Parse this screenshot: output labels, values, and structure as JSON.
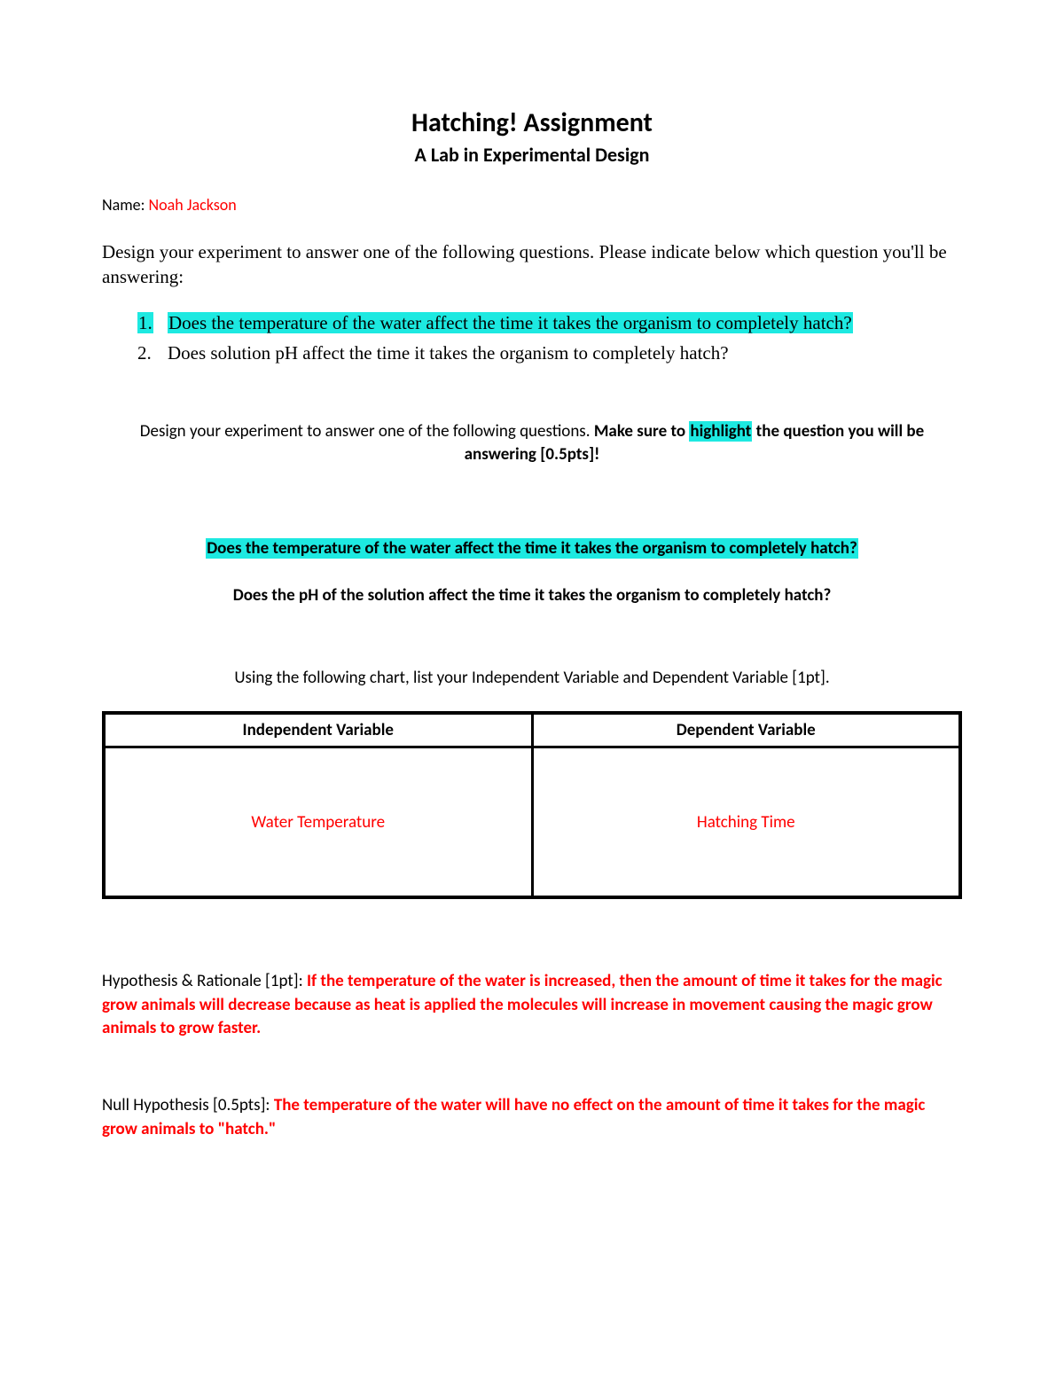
{
  "title": "Hatching! Assignment",
  "subtitle": "A Lab in Experimental Design",
  "name_label": "Name:",
  "name_value": "Noah Jackson",
  "intro": "Design your experiment to answer one of the following questions. Please indicate below which question you'll be answering:",
  "questions": {
    "q1_num": "1.",
    "q1_text": "Does the temperature of the water affect the time it takes the organism to completely hatch?",
    "q2_num": "2.",
    "q2_text": "Does solution pH affect the time it takes the organism to completely hatch?"
  },
  "instruction_part1": "Design your experiment to answer one of the following questions.  ",
  "instruction_part2": "Make sure to ",
  "instruction_highlight": "highlight",
  "instruction_part3": " the question you will be answering [0.5pts]!",
  "selected_question": "Does the temperature of the water affect the time it takes the organism to completely hatch?",
  "plain_question": "Does the pH of the solution affect the time it takes the organism to completely hatch?",
  "chart_instruction": "Using the following chart, list your Independent Variable and Dependent Variable [1pt].",
  "table": {
    "header_iv": "Independent Variable",
    "header_dv": "Dependent Variable",
    "value_iv": "Water Temperature",
    "value_dv": "Hatching Time"
  },
  "hypothesis_label": "Hypothesis & Rationale [1pt]:  ",
  "hypothesis_text": "If the temperature of the water is increased, then the amount of time it takes for the magic grow animals will decrease because as heat is applied the molecules will increase in movement causing the magic grow animals to grow faster.",
  "null_label": "Null Hypothesis [0.5pts]:  ",
  "null_text": "The temperature of the water will have no effect on the amount of time it takes for the magic grow animals to \"hatch.\"",
  "colors": {
    "highlight": "#1de9e1",
    "answer_text": "#ff0000",
    "body_text": "#000000",
    "background": "#ffffff",
    "border": "#000000"
  },
  "fonts": {
    "title_size": 30,
    "subtitle_size": 22,
    "body_size": 19,
    "serif_size": 21
  }
}
